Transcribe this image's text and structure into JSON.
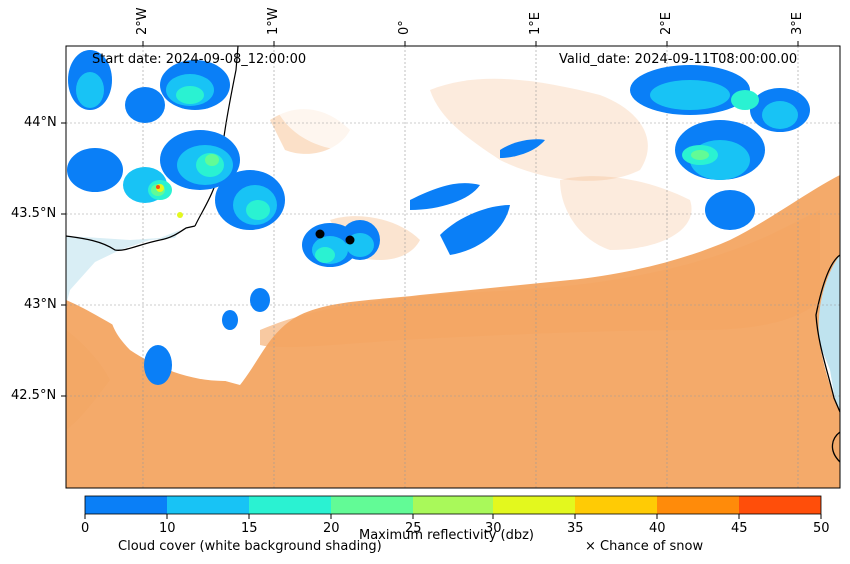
{
  "annotations": {
    "start_date": "Start date: 2024-09-08_12:00:00",
    "valid_date": "Valid_date: 2024-09-11T08:00:00.00"
  },
  "axes": {
    "lon_labels": [
      "2°W",
      "1°W",
      "0°",
      "1°E",
      "2°E",
      "3°E"
    ],
    "lat_labels": [
      "44°N",
      "43.5°N",
      "43°N",
      "42.5°N"
    ]
  },
  "colorbar": {
    "title": "Maximum reflectivity (dbz)",
    "ticks": [
      "0",
      "10",
      "15",
      "20",
      "25",
      "30",
      "35",
      "40",
      "45",
      "50"
    ],
    "colors": [
      "#0a7ff7",
      "#18c3f5",
      "#2af2d2",
      "#62fb96",
      "#a9f95a",
      "#e3f81e",
      "#ffcb05",
      "#ff8b0a",
      "#ff4e0a"
    ]
  },
  "legend": {
    "cloud_cover": "Cloud cover (white background shading)",
    "snow": "× Chance of snow"
  },
  "colors": {
    "cloud_orange": "#f3a562",
    "sea": "#bfe3ef"
  }
}
